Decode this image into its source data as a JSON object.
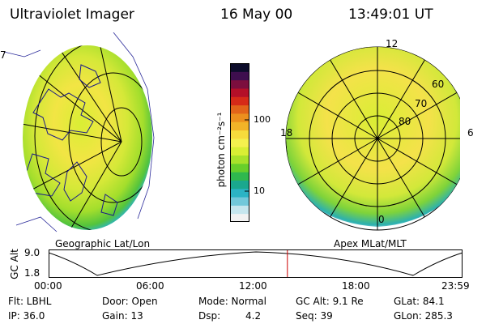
{
  "header": {
    "instrument": "Ultraviolet Imager",
    "date": "16 May 00",
    "time": "13:49:01 UT"
  },
  "left_panel": {
    "label": "Geographic Lat/Lon",
    "edge_label": "7"
  },
  "right_panel": {
    "label": "Apex MLat/MLT",
    "mlt_labels": {
      "top": "12",
      "left": "18",
      "right": "6",
      "bottom": "0"
    },
    "mlat_labels": [
      "60",
      "70",
      "80"
    ]
  },
  "colorbar": {
    "unit_label": "photon cm⁻²s⁻¹",
    "ticks": [
      "100",
      "10"
    ],
    "colors": [
      "#f2f2f2",
      "#c6e6ee",
      "#72c8da",
      "#2bb3c4",
      "#1aa88e",
      "#2fb84e",
      "#68cf2a",
      "#a8e22a",
      "#d9ee34",
      "#f5f04e",
      "#f7dc3c",
      "#f2b328",
      "#ec8f1e",
      "#e2641a",
      "#d62a18",
      "#b40f28",
      "#7c0e3e",
      "#3e0e4e",
      "#0c0c2a"
    ]
  },
  "gc_alt_plot": {
    "ylabel": "GC Alt",
    "y_ticks": [
      "9.0",
      "1.8"
    ],
    "x_ticks": [
      "00:00",
      "06:00",
      "12:00",
      "18:00",
      "23:59"
    ],
    "current_time_fraction": 0.577
  },
  "info": {
    "filter": "Flt: LBHL",
    "door": "Door: Open",
    "mode": "Mode: Normal",
    "gc_alt": "GC Alt: 9.1 Re",
    "glat": "GLat: 84.1",
    "ip": "IP: 36.0",
    "gain": "Gain: 13",
    "dsp_label": "Dsp:",
    "dsp_value": "4.2",
    "seq": "Seq: 39",
    "glon": "GLon: 285.3"
  }
}
